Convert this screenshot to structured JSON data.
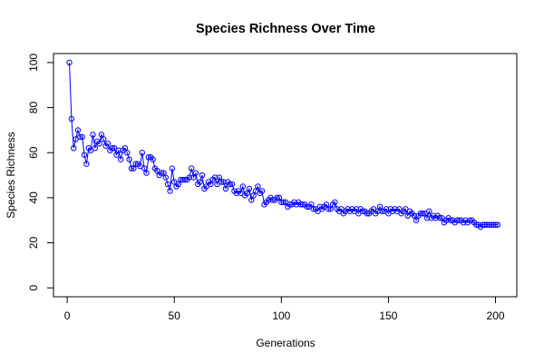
{
  "chart_data": {
    "type": "line",
    "title": "Species Richness Over Time",
    "xlabel": "Generations",
    "ylabel": "Species Richness",
    "xlim": [
      1,
      201
    ],
    "ylim": [
      0,
      100
    ],
    "xticks": [
      0,
      50,
      100,
      150,
      200
    ],
    "yticks": [
      0,
      20,
      40,
      60,
      80,
      100
    ],
    "grid": false,
    "legend": "none",
    "series": [
      {
        "color": "#0000ff",
        "marker": "open-circle",
        "x": [
          1,
          2,
          3,
          4,
          5,
          6,
          7,
          8,
          9,
          10,
          11,
          12,
          13,
          14,
          15,
          16,
          17,
          18,
          19,
          20,
          21,
          22,
          23,
          24,
          25,
          26,
          27,
          28,
          29,
          30,
          31,
          32,
          33,
          34,
          35,
          36,
          37,
          38,
          39,
          40,
          41,
          42,
          43,
          44,
          45,
          46,
          47,
          48,
          49,
          50,
          51,
          52,
          53,
          54,
          55,
          56,
          57,
          58,
          59,
          60,
          61,
          62,
          63,
          64,
          65,
          66,
          67,
          68,
          69,
          70,
          71,
          72,
          73,
          74,
          75,
          76,
          77,
          78,
          79,
          80,
          81,
          82,
          83,
          84,
          85,
          86,
          87,
          88,
          89,
          90,
          91,
          92,
          93,
          94,
          95,
          96,
          97,
          98,
          99,
          100,
          101,
          102,
          103,
          104,
          105,
          106,
          107,
          108,
          109,
          110,
          111,
          112,
          113,
          114,
          115,
          116,
          117,
          118,
          119,
          120,
          121,
          122,
          123,
          124,
          125,
          126,
          127,
          128,
          129,
          130,
          131,
          132,
          133,
          134,
          135,
          136,
          137,
          138,
          139,
          140,
          141,
          142,
          143,
          144,
          145,
          146,
          147,
          148,
          149,
          150,
          151,
          152,
          153,
          154,
          155,
          156,
          157,
          158,
          159,
          160,
          161,
          162,
          163,
          164,
          165,
          166,
          167,
          168,
          169,
          170,
          171,
          172,
          173,
          174,
          175,
          176,
          177,
          178,
          179,
          180,
          181,
          182,
          183,
          184,
          185,
          186,
          187,
          188,
          189,
          190,
          191,
          192,
          193,
          194,
          195,
          196,
          197,
          198,
          199,
          200,
          201
        ],
        "y": [
          100,
          75,
          62,
          66,
          70,
          67,
          67,
          59,
          55,
          62,
          61,
          68,
          62,
          65,
          64,
          68,
          66,
          63,
          64,
          61,
          62,
          62,
          59,
          61,
          57,
          61,
          62,
          60,
          57,
          53,
          53,
          55,
          55,
          54,
          60,
          53,
          51,
          58,
          58,
          57,
          53,
          52,
          50,
          51,
          51,
          49,
          46,
          43,
          53,
          47,
          45,
          46,
          48,
          48,
          48,
          48,
          49,
          53,
          49,
          51,
          46,
          47,
          50,
          44,
          45,
          47,
          46,
          48,
          49,
          46,
          49,
          47,
          47,
          44,
          47,
          46,
          46,
          43,
          42,
          43,
          42,
          45,
          41,
          42,
          44,
          39,
          41,
          43,
          45,
          42,
          43,
          37,
          38,
          39,
          40,
          39,
          39,
          40,
          40,
          38,
          38,
          38,
          36,
          37,
          37,
          38,
          37,
          38,
          37,
          37,
          37,
          36,
          36,
          37,
          35,
          35,
          34,
          36,
          35,
          36,
          37,
          35,
          35,
          37,
          38,
          35,
          34,
          35,
          33,
          34,
          35,
          34,
          35,
          34,
          35,
          33,
          35,
          34,
          34,
          33,
          33,
          34,
          35,
          33,
          34,
          36,
          34,
          34,
          35,
          33,
          35,
          34,
          35,
          34,
          35,
          33,
          34,
          35,
          32,
          34,
          33,
          32,
          30,
          32,
          33,
          33,
          33,
          31,
          34,
          31,
          32,
          31,
          32,
          31,
          31,
          29,
          30,
          31,
          30,
          30,
          29,
          30,
          30,
          30,
          29,
          30,
          29,
          30,
          30,
          29,
          28,
          28,
          27,
          28,
          28,
          28,
          28,
          28,
          28,
          28,
          28
        ]
      }
    ]
  }
}
